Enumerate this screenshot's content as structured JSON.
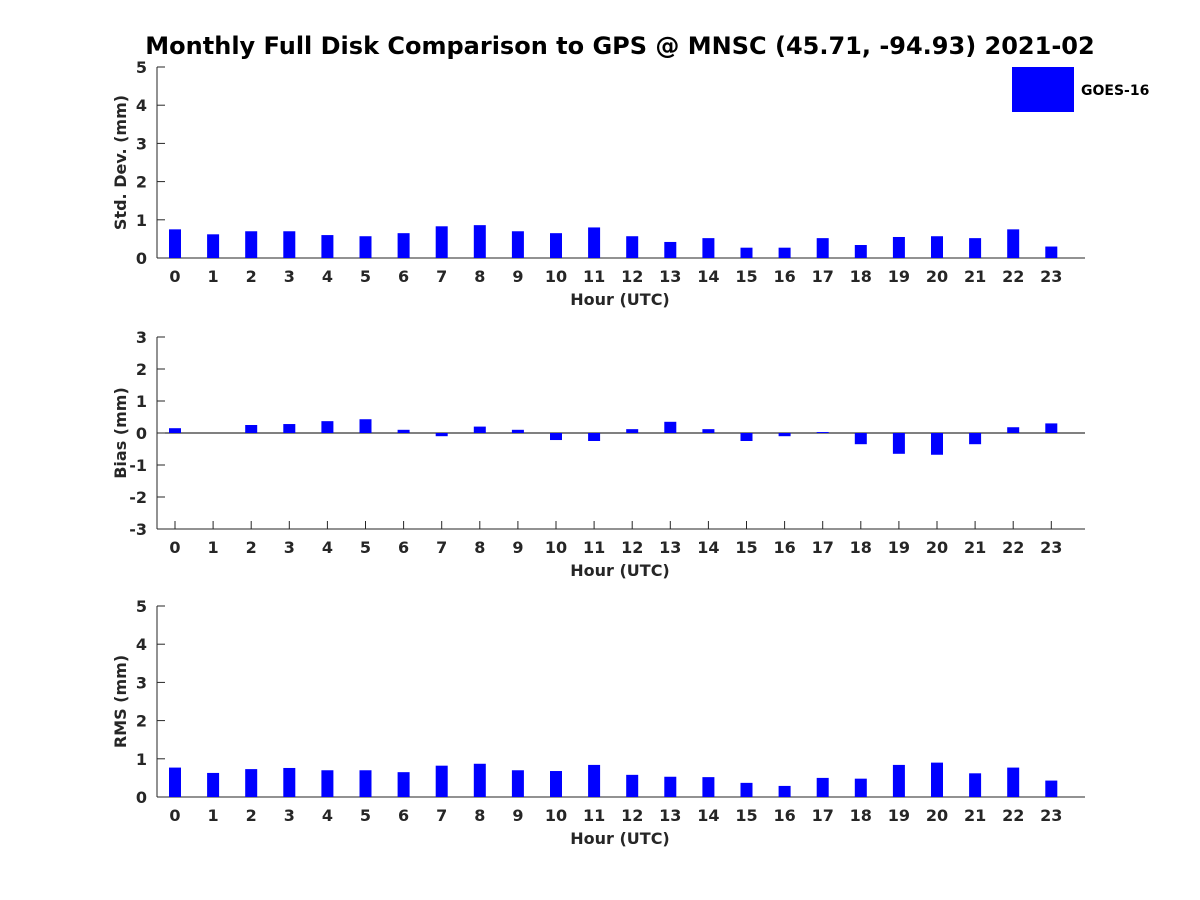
{
  "chart_data": {
    "title": "Monthly Full Disk Comparison to GPS @ MNSC (45.71, -94.93) 2021-02",
    "legend": {
      "label": "GOES-16",
      "color": "#0000ff",
      "placement": "top-right"
    },
    "categories": [
      "0",
      "1",
      "2",
      "3",
      "4",
      "5",
      "6",
      "7",
      "8",
      "9",
      "10",
      "11",
      "12",
      "13",
      "14",
      "15",
      "16",
      "17",
      "18",
      "19",
      "20",
      "21",
      "22",
      "23"
    ],
    "panels": [
      {
        "type": "bar",
        "xlabel": "Hour (UTC)",
        "ylabel": "Std. Dev. (mm)",
        "ylim": [
          0,
          5
        ],
        "yticks": [
          "0",
          "1",
          "2",
          "3",
          "4",
          "5"
        ],
        "series": [
          {
            "name": "GOES-16",
            "values": [
              0.75,
              0.62,
              0.7,
              0.7,
              0.6,
              0.57,
              0.65,
              0.83,
              0.86,
              0.7,
              0.65,
              0.8,
              0.57,
              0.42,
              0.52,
              0.27,
              0.27,
              0.52,
              0.34,
              0.55,
              0.57,
              0.52,
              0.75,
              0.3
            ]
          }
        ]
      },
      {
        "type": "bar",
        "xlabel": "Hour (UTC)",
        "ylabel": "Bias (mm)",
        "ylim": [
          -3,
          3
        ],
        "yticks": [
          "-3",
          "-2",
          "-1",
          "0",
          "1",
          "2",
          "3"
        ],
        "series": [
          {
            "name": "GOES-16",
            "values": [
              0.15,
              0.0,
              0.25,
              0.28,
              0.37,
              0.43,
              0.1,
              -0.1,
              0.2,
              0.1,
              -0.22,
              -0.25,
              0.12,
              0.35,
              0.12,
              -0.25,
              -0.1,
              0.03,
              -0.35,
              -0.65,
              -0.68,
              -0.35,
              0.18,
              0.3
            ]
          }
        ]
      },
      {
        "type": "bar",
        "xlabel": "Hour (UTC)",
        "ylabel": "RMS (mm)",
        "ylim": [
          0,
          5
        ],
        "yticks": [
          "0",
          "1",
          "2",
          "3",
          "4",
          "5"
        ],
        "series": [
          {
            "name": "GOES-16",
            "values": [
              0.77,
              0.63,
              0.73,
              0.76,
              0.7,
              0.7,
              0.65,
              0.82,
              0.87,
              0.7,
              0.68,
              0.84,
              0.58,
              0.53,
              0.52,
              0.37,
              0.29,
              0.5,
              0.48,
              0.84,
              0.9,
              0.62,
              0.77,
              0.43
            ]
          }
        ]
      }
    ]
  }
}
